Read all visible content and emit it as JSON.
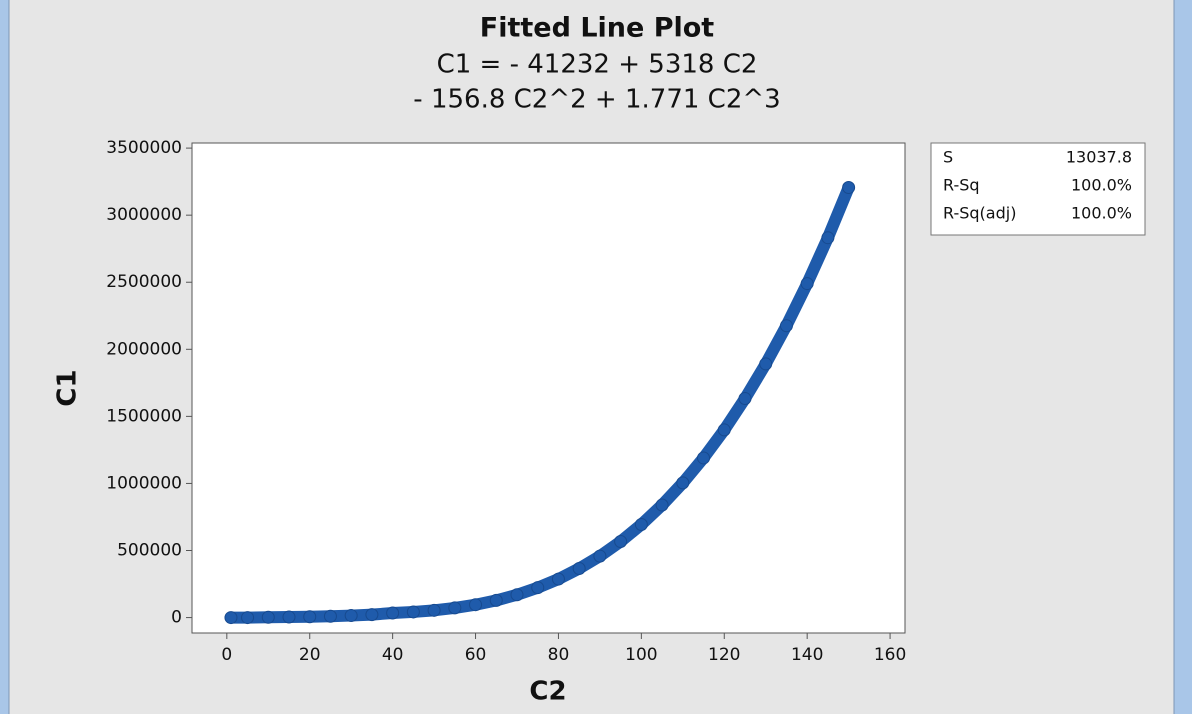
{
  "chart_data": {
    "type": "scatter",
    "title": "Fitted Line Plot",
    "subtitle": [
      "C1 = - 41232 + 5318 C2",
      "- 156.8 C2^2 + 1.771 C2^3"
    ],
    "x_label": "C2",
    "y_label": "C1",
    "x": [
      1,
      5,
      10,
      15,
      20,
      25,
      30,
      35,
      40,
      45,
      50,
      55,
      60,
      65,
      70,
      75,
      80,
      85,
      90,
      95,
      100,
      105,
      110,
      115,
      120,
      125,
      130,
      135,
      140,
      145,
      150
    ],
    "series": [
      {
        "color": "#1f5bab",
        "values": [
          0,
          0,
          2000,
          4000,
          6000,
          10000,
          15000,
          22000,
          34000,
          42000,
          54000,
          72000,
          96000,
          128000,
          170000,
          223000,
          287000,
          366000,
          458000,
          567000,
          694000,
          839000,
          1004000,
          1190000,
          1399000,
          1633000,
          1891000,
          2176000,
          2490000,
          2832000,
          3206000
        ]
      }
    ],
    "xlim": [
      -8.4,
      163.6
    ],
    "ylim": [
      -115000,
      3538000
    ],
    "xticks": [
      0,
      20,
      40,
      60,
      80,
      100,
      120,
      140,
      160
    ],
    "yticks": [
      0,
      500000,
      1000000,
      1500000,
      2000000,
      2500000,
      3000000,
      3500000
    ],
    "stats": [
      [
        "S",
        "13037.8"
      ],
      [
        "R-Sq",
        "100.0%"
      ],
      [
        "R-Sq(adj)",
        "100.0%"
      ]
    ]
  }
}
